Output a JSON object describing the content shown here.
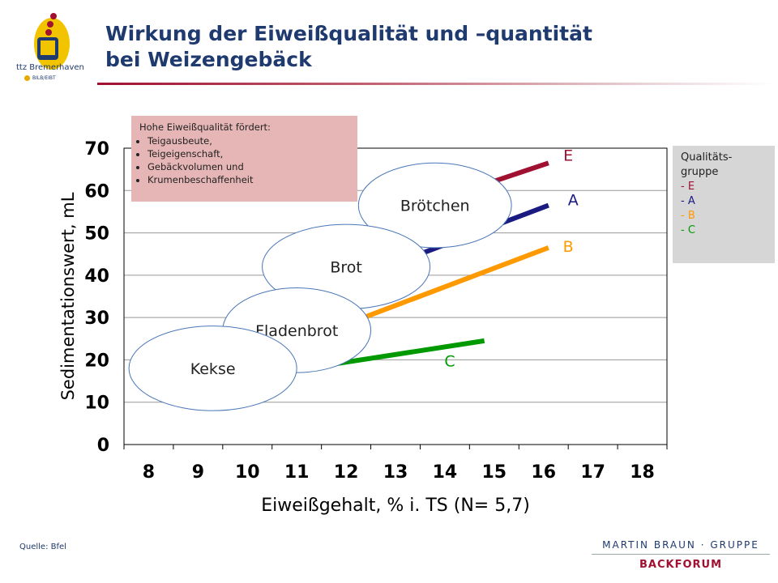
{
  "header": {
    "title_line1": "Wirkung der Eiweißqualität und –quantität",
    "title_line2": "bei Weizengebäck",
    "logo_text": "ttz Bremerhaven",
    "logo_sub": "BILB/EIBT"
  },
  "footer": {
    "source": "Quelle: Bfel",
    "brand_main": "MARTIN BRAUN · GRUPPE",
    "brand_sub": "BACKFORUM"
  },
  "note": {
    "heading": "Hohe Eiweißqualität fördert:",
    "items": [
      "Teigausbeute,",
      "Teigeigenschaft,",
      "Gebäckvolumen und",
      "Krumenbeschaffenheit"
    ]
  },
  "legend_box": {
    "line1": "Qualitäts-",
    "line2": "gruppe",
    "items": [
      {
        "label": "- E",
        "color": "#a01030"
      },
      {
        "label": "- A",
        "color": "#1a1a80"
      },
      {
        "label": "- B",
        "color": "#ff9900"
      },
      {
        "label": "- C",
        "color": "#009900"
      }
    ]
  },
  "chart_data": {
    "type": "line",
    "xlabel": "Eiweißgehalt, % i. TS (N= 5,7)",
    "ylabel": "Sedimentationswert, mL",
    "xlim": [
      7.5,
      18.5
    ],
    "ylim": [
      0,
      70
    ],
    "x_ticks": [
      "8",
      "9",
      "10",
      "11",
      "12",
      "13",
      "14",
      "15",
      "16",
      "17",
      "18"
    ],
    "y_ticks": [
      "0",
      "10",
      "20",
      "30",
      "40",
      "50",
      "60",
      "70"
    ],
    "grid": "horizontal",
    "series": [
      {
        "name": "E",
        "color": "#a01030",
        "points": [
          [
            13.8,
            57.5
          ],
          [
            16.1,
            66.5
          ]
        ]
      },
      {
        "name": "A",
        "color": "#1a1a80",
        "points": [
          [
            11.8,
            37.5
          ],
          [
            16.1,
            56.5
          ]
        ]
      },
      {
        "name": "B",
        "color": "#ff9900",
        "points": [
          [
            10.2,
            20.5
          ],
          [
            16.1,
            46.5
          ]
        ]
      },
      {
        "name": "C",
        "color": "#009900",
        "points": [
          [
            9.8,
            15.5
          ],
          [
            14.8,
            24.5
          ]
        ]
      }
    ],
    "series_labels": [
      {
        "text": "E",
        "x": 16.5,
        "y": 67.0,
        "color": "#a01030"
      },
      {
        "text": "A",
        "x": 16.6,
        "y": 56.5,
        "color": "#1a1a80"
      },
      {
        "text": "B",
        "x": 16.5,
        "y": 45.5,
        "color": "#ff9900"
      },
      {
        "text": "C",
        "x": 14.1,
        "y": 18.5,
        "color": "#009900"
      }
    ],
    "ellipses": [
      {
        "label": "Brötchen",
        "cx": 13.8,
        "cy": 56.5,
        "rx": 1.55,
        "ry": 10.0
      },
      {
        "label": "Brot",
        "cx": 12.0,
        "cy": 42.0,
        "rx": 1.7,
        "ry": 10.0
      },
      {
        "label": "Fladenbrot",
        "cx": 11.0,
        "cy": 27.0,
        "rx": 1.5,
        "ry": 10.0
      },
      {
        "label": "Kekse",
        "cx": 9.3,
        "cy": 18.0,
        "rx": 1.7,
        "ry": 10.0
      }
    ]
  }
}
